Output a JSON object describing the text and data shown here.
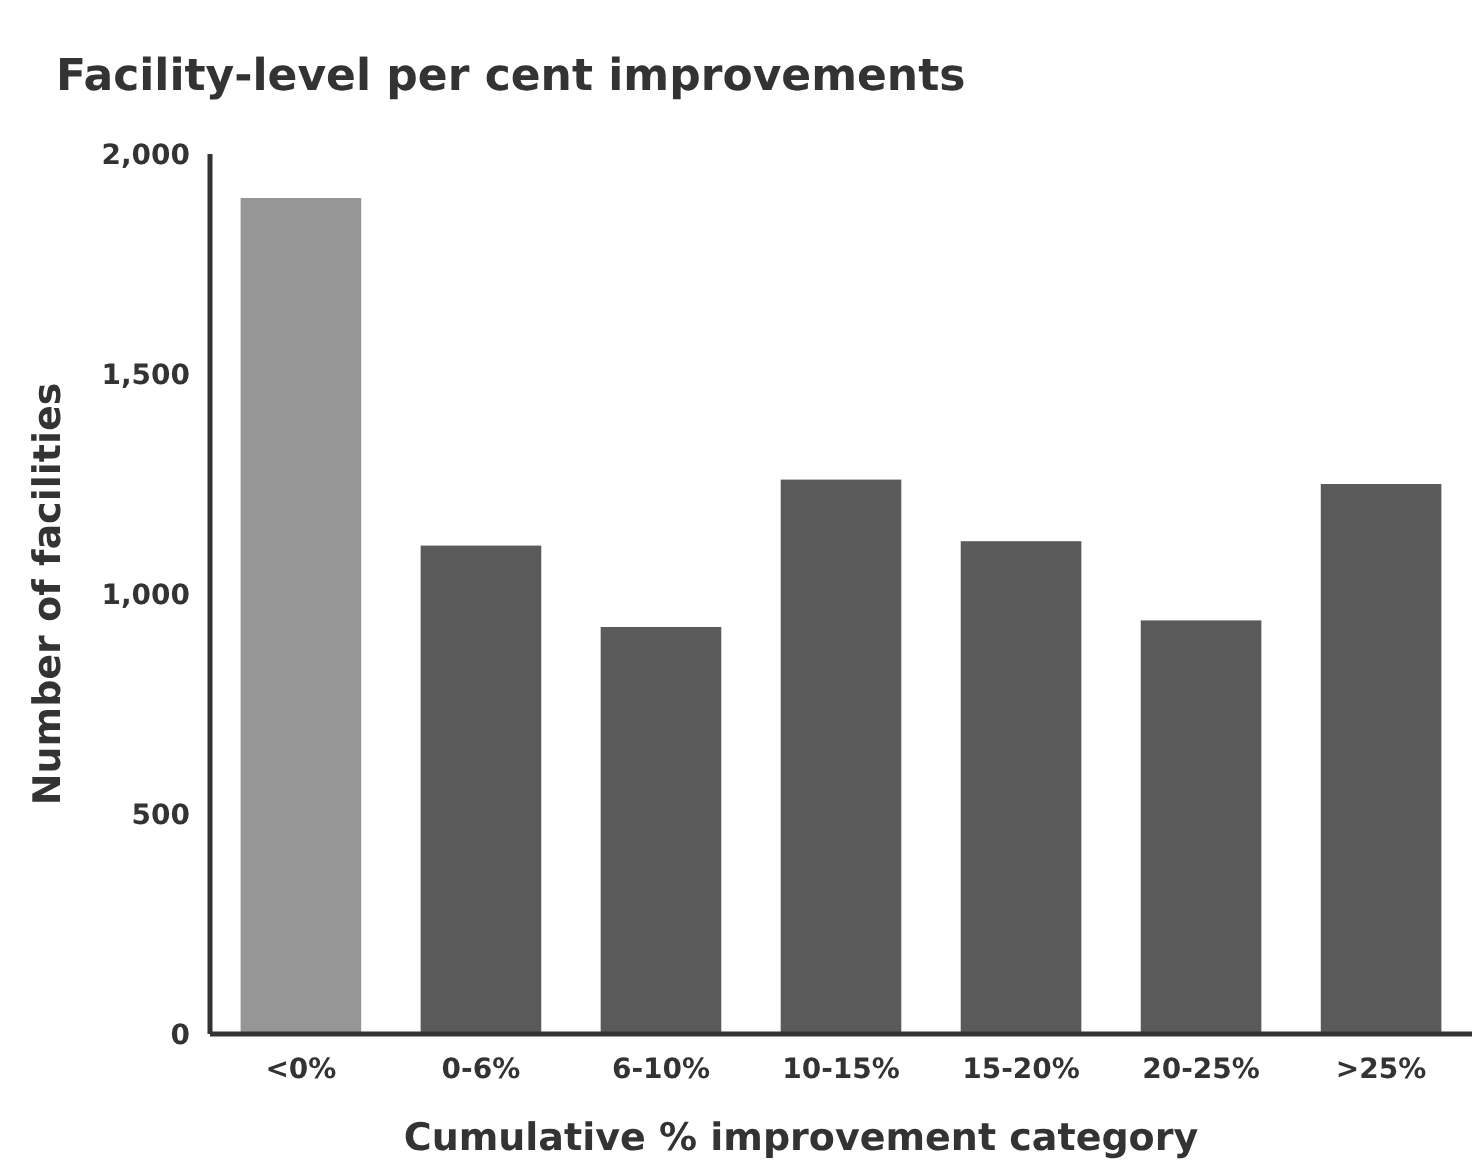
{
  "chart_data": {
    "type": "bar",
    "title": "Facility-level per cent improvements",
    "xlabel": "Cumulative % improvement category",
    "ylabel": "Number of facilities",
    "categories": [
      "<0%",
      "0-6%",
      "6-10%",
      "10-15%",
      "15-20%",
      "20-25%",
      ">25%"
    ],
    "values": [
      1900,
      1110,
      925,
      1260,
      1120,
      940,
      1250
    ],
    "colors": [
      "#969696",
      "#5a5a5a",
      "#5a5a5a",
      "#5a5a5a",
      "#5a5a5a",
      "#5a5a5a",
      "#5a5a5a"
    ],
    "ylim": [
      0,
      2000
    ],
    "yticks": [
      {
        "value": 0,
        "label": "0"
      },
      {
        "value": 500,
        "label": "500"
      },
      {
        "value": 1000,
        "label": "1,000"
      },
      {
        "value": 1500,
        "label": "1,500"
      },
      {
        "value": 2000,
        "label": "2,000"
      }
    ],
    "grid": false
  }
}
